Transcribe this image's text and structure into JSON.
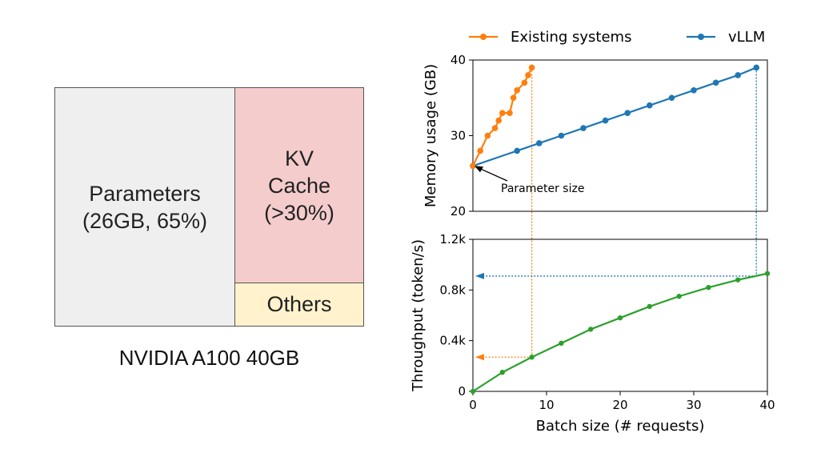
{
  "memory_layout": {
    "segments": [
      {
        "key": "params",
        "label": "Parameters\n(26GB, 65%)",
        "color": "#efefef"
      },
      {
        "key": "kv",
        "label": "KV\nCache\n(>30%)",
        "color": "#f4cccc"
      },
      {
        "key": "others",
        "label": "Others",
        "color": "#fff2cc"
      }
    ],
    "caption": "NVIDIA A100 40GB"
  },
  "chart_data": [
    {
      "type": "line",
      "title": "",
      "xlabel": "",
      "ylabel": "Memory usage (GB)",
      "xlim": [
        0,
        40
      ],
      "ylim": [
        20,
        40
      ],
      "yticks": [
        20,
        30,
        40
      ],
      "legend": "top",
      "series": [
        {
          "name": "Existing systems",
          "color": "#ff7f0e",
          "x": [
            0,
            1,
            2,
            3,
            3.5,
            4,
            5,
            5.5,
            6,
            7,
            7.5,
            8
          ],
          "y": [
            26,
            28,
            30,
            31,
            32,
            33,
            33,
            35,
            36,
            37,
            38,
            39
          ]
        },
        {
          "name": "vLLM",
          "color": "#1f77b4",
          "x": [
            0,
            6,
            9,
            12,
            15,
            18,
            21,
            24,
            27,
            30,
            33,
            36,
            38.5
          ],
          "y": [
            26,
            28,
            29,
            30,
            31,
            32,
            33,
            34,
            35,
            36,
            37,
            38,
            39
          ]
        }
      ],
      "annotation": {
        "text": "Parameter size",
        "x": 0,
        "y": 26
      }
    },
    {
      "type": "line",
      "title": "",
      "xlabel": "Batch size (# requests)",
      "ylabel": "Throughput (token/s)",
      "xlim": [
        0,
        40
      ],
      "ylim": [
        0,
        1200
      ],
      "xticks": [
        0,
        10,
        20,
        30,
        40
      ],
      "yticks": [
        0,
        400,
        800,
        1200
      ],
      "ytick_labels": [
        "0",
        "0.4k",
        "0.8k",
        "1.2k"
      ],
      "series": [
        {
          "color": "#2ca02c",
          "x": [
            0,
            4,
            8,
            12,
            16,
            20,
            24,
            28,
            32,
            36,
            40
          ],
          "y": [
            0,
            150,
            270,
            380,
            490,
            580,
            670,
            750,
            820,
            880,
            930
          ]
        }
      ],
      "guides": [
        {
          "color": "#ff7f0e",
          "x": 8,
          "y": 270
        },
        {
          "color": "#1f77b4",
          "x": 38.5,
          "y": 910
        }
      ]
    }
  ]
}
